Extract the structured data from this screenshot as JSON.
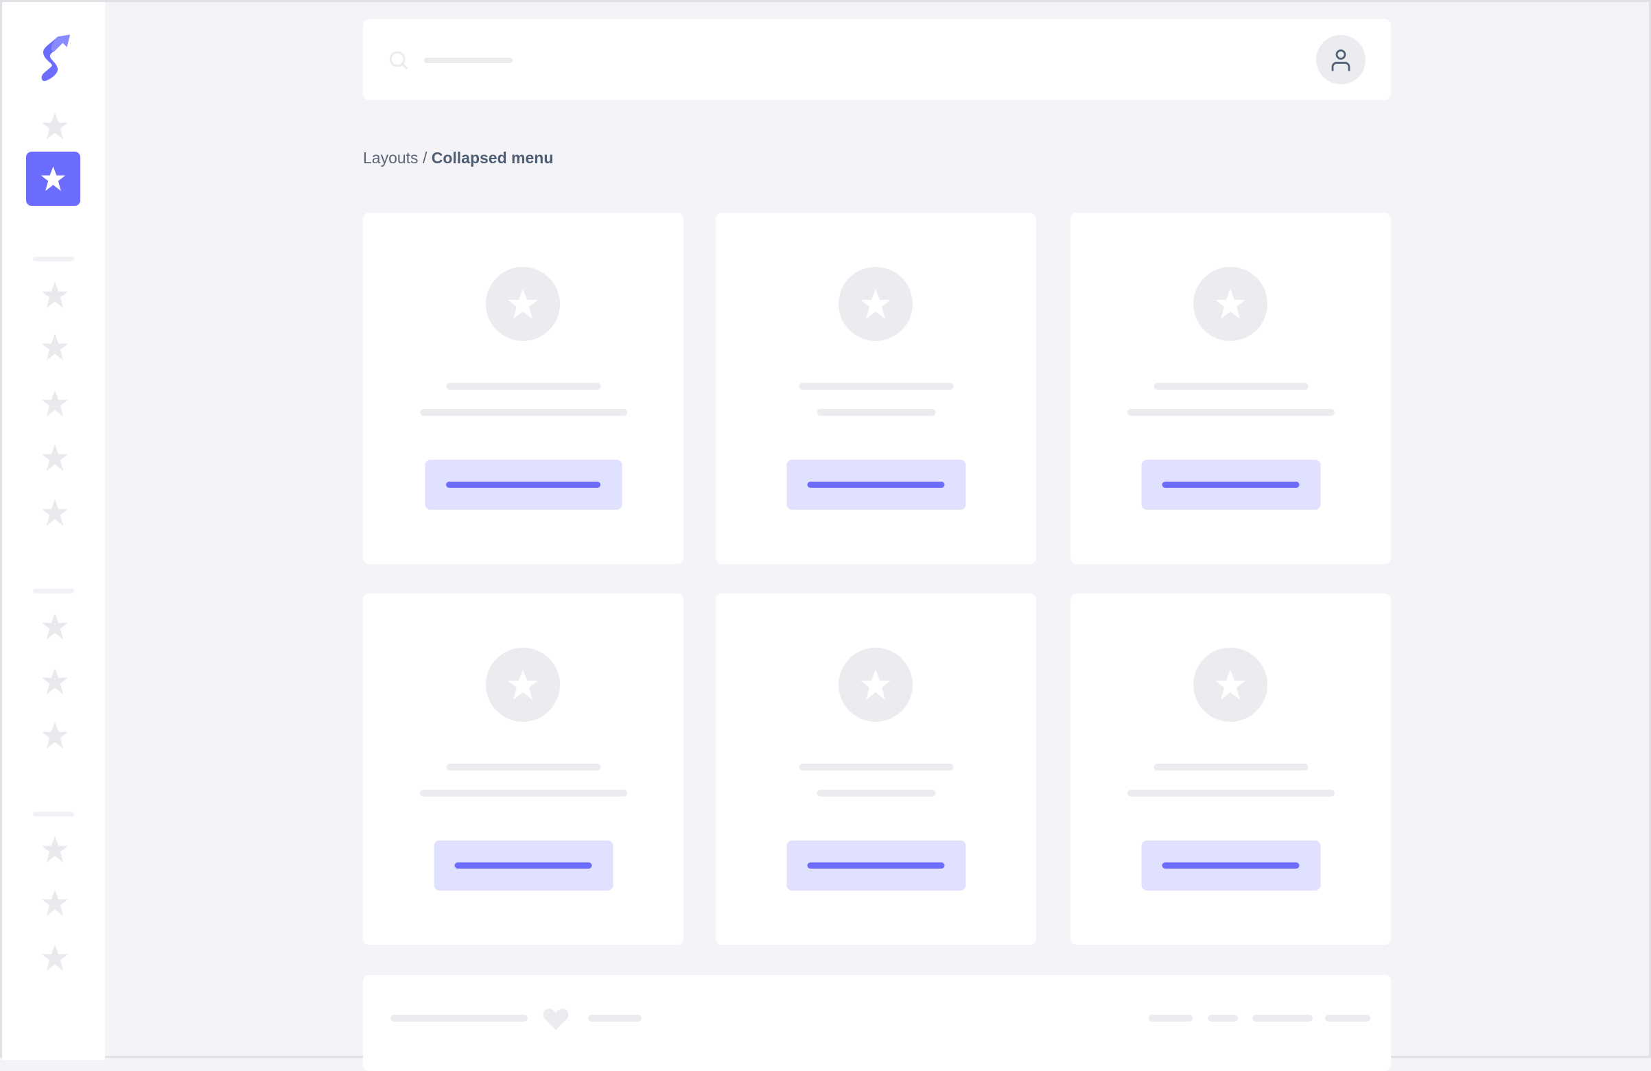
{
  "breadcrumb": {
    "parent": "Layouts",
    "separator": " / ",
    "current": "Collapsed menu"
  },
  "colors": {
    "accent": "#6c6cff",
    "accent_light": "#e0e0ff",
    "placeholder": "#ebecf0",
    "background": "#f4f4f8"
  },
  "icons": {
    "logo": "brand-s-logo",
    "nav": "star-icon",
    "search": "search-icon",
    "user": "user-icon",
    "footer": "heart-icon"
  }
}
